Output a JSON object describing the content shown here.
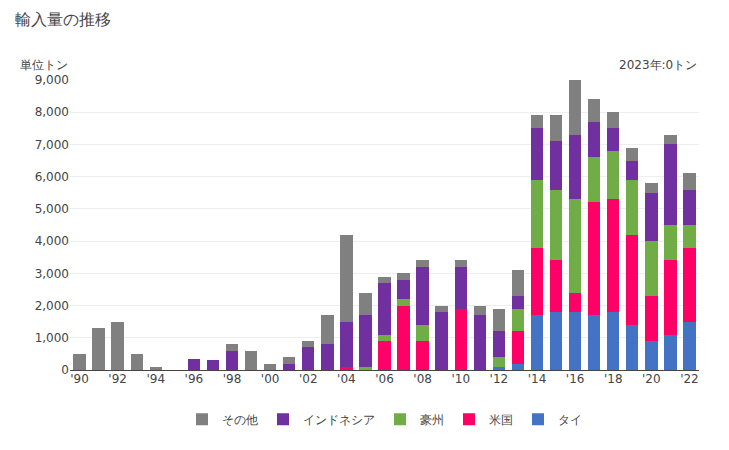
{
  "chart_data": {
    "type": "bar",
    "stacked": true,
    "title": "輸入量の推移",
    "ylabel": "単位トン",
    "annotations": [
      "2023年:0トン"
    ],
    "categories": [
      "'90",
      null,
      "'92",
      null,
      "'94",
      null,
      "'96",
      null,
      "'98",
      null,
      "'00",
      null,
      "'02",
      null,
      "'04",
      null,
      "'06",
      null,
      "'08",
      null,
      "'10",
      null,
      "'12",
      null,
      "'14",
      null,
      "'16",
      null,
      "'18",
      null,
      "'20",
      null,
      "'22"
    ],
    "series": [
      {
        "name": "タイ",
        "color": "#4472C4",
        "values": [
          0,
          0,
          0,
          0,
          0,
          0,
          0,
          0,
          0,
          0,
          0,
          0,
          0,
          0,
          0,
          0,
          0,
          0,
          0,
          0,
          0,
          0,
          100,
          200,
          1700,
          1800,
          1800,
          1700,
          1800,
          1400,
          900,
          1100,
          1500
        ]
      },
      {
        "name": "米国",
        "color": "#FF0066",
        "values": [
          0,
          0,
          0,
          0,
          0,
          0,
          0,
          0,
          0,
          0,
          0,
          0,
          0,
          0,
          100,
          0,
          900,
          2000,
          900,
          0,
          1900,
          0,
          0,
          1000,
          2100,
          1600,
          600,
          3500,
          3500,
          2800,
          1400,
          2300,
          2300
        ]
      },
      {
        "name": "豪州",
        "color": "#70AD47",
        "values": [
          0,
          0,
          0,
          0,
          0,
          0,
          0,
          0,
          0,
          0,
          0,
          0,
          0,
          0,
          0,
          100,
          200,
          200,
          500,
          0,
          0,
          0,
          300,
          700,
          2100,
          2200,
          2900,
          1400,
          1500,
          1700,
          1700,
          1100,
          700
        ]
      },
      {
        "name": "インドネシア",
        "color": "#7030A0",
        "values": [
          0,
          0,
          0,
          0,
          0,
          0,
          350,
          300,
          600,
          0,
          0,
          200,
          700,
          800,
          1400,
          1600,
          1600,
          600,
          1800,
          1800,
          1300,
          1700,
          800,
          400,
          1600,
          1500,
          2000,
          1100,
          700,
          600,
          1500,
          2500,
          1100
        ]
      },
      {
        "name": "その他",
        "color": "#808080",
        "values": [
          500,
          1300,
          1500,
          500,
          100,
          0,
          0,
          0,
          200,
          600,
          200,
          200,
          200,
          900,
          2700,
          700,
          200,
          200,
          200,
          200,
          200,
          300,
          700,
          800,
          400,
          800,
          1700,
          700,
          500,
          400,
          300,
          300,
          500
        ]
      }
    ],
    "ylim": [
      0,
      9000
    ],
    "yticks": [
      0,
      {
        "value": 1000,
        "label": "1,000"
      },
      {
        "value": 2000,
        "label": "2,000"
      },
      {
        "value": 3000,
        "label": "3,000"
      },
      {
        "value": 4000,
        "label": "4,000"
      },
      {
        "value": 5000,
        "label": "5,000"
      },
      {
        "value": 6000,
        "label": "6,000"
      },
      {
        "value": 7000,
        "label": "7,000"
      },
      {
        "value": 8000,
        "label": "8,000"
      },
      {
        "value": 9000,
        "label": "9,000"
      }
    ],
    "grid": true,
    "legend": "bottom"
  }
}
